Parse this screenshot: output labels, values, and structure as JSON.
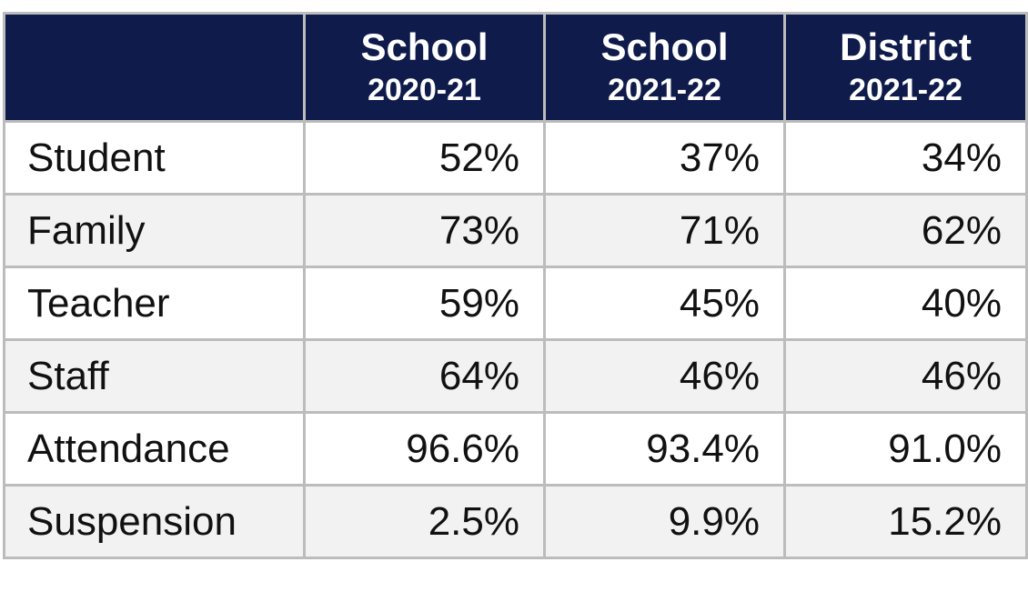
{
  "table": {
    "columns": [
      {
        "title": "School",
        "period": "2020-21"
      },
      {
        "title": "School",
        "period": "2021-22"
      },
      {
        "title": "District",
        "period": "2021-22"
      }
    ],
    "rows": [
      {
        "label": "Student",
        "values": [
          "52%",
          "37%",
          "34%"
        ]
      },
      {
        "label": "Family",
        "values": [
          "73%",
          "71%",
          "62%"
        ]
      },
      {
        "label": "Teacher",
        "values": [
          "59%",
          "45%",
          "40%"
        ]
      },
      {
        "label": "Staff",
        "values": [
          "64%",
          "46%",
          "46%"
        ]
      },
      {
        "label": "Attendance",
        "values": [
          "96.6%",
          "93.4%",
          "91.0%"
        ]
      },
      {
        "label": "Suspension",
        "values": [
          "2.5%",
          "9.9%",
          "15.2%"
        ]
      }
    ]
  }
}
